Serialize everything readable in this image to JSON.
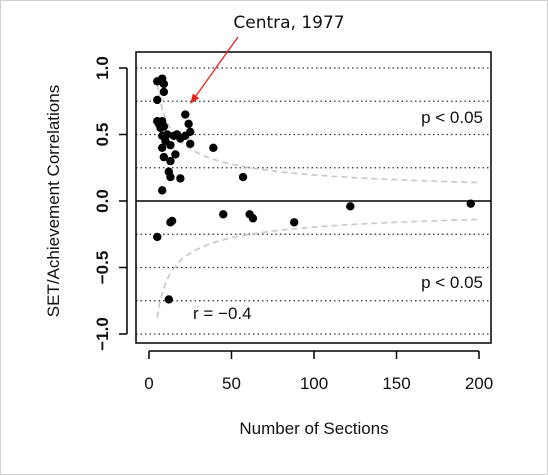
{
  "chart_data": {
    "type": "scatter",
    "title": "",
    "xlabel": "Number of Sections",
    "ylabel": "SET/Achievement Correlations",
    "xlim": [
      0,
      200
    ],
    "ylim": [
      -1.05,
      1.05
    ],
    "x_ticks": [
      0,
      50,
      100,
      150,
      200
    ],
    "y_ticks": [
      -1.0,
      -0.5,
      0.0,
      0.5,
      1.0
    ],
    "x_tick_labels": [
      "0",
      "50",
      "100",
      "150",
      "200"
    ],
    "y_tick_labels": [
      "−1.0",
      "−0.5",
      "0.0",
      "0.5",
      "1.0"
    ],
    "grid": "horizontal dotted lines at y = ±0.25, ±0.5, ±0.75, ±1.0",
    "reference_line_y": 0,
    "point_color": "#000000",
    "curve_color": "#c8c8c8",
    "points": [
      {
        "x": 5,
        "y": 0.9
      },
      {
        "x": 8,
        "y": 0.92
      },
      {
        "x": 9,
        "y": 0.88
      },
      {
        "x": 9,
        "y": 0.82
      },
      {
        "x": 5,
        "y": 0.76
      },
      {
        "x": 5,
        "y": 0.6
      },
      {
        "x": 6,
        "y": 0.58
      },
      {
        "x": 7,
        "y": 0.55
      },
      {
        "x": 8,
        "y": 0.6
      },
      {
        "x": 9,
        "y": 0.56
      },
      {
        "x": 11,
        "y": 0.5
      },
      {
        "x": 8,
        "y": 0.49
      },
      {
        "x": 10,
        "y": 0.45
      },
      {
        "x": 13,
        "y": 0.42
      },
      {
        "x": 15,
        "y": 0.49
      },
      {
        "x": 17,
        "y": 0.5
      },
      {
        "x": 19,
        "y": 0.47
      },
      {
        "x": 22,
        "y": 0.49
      },
      {
        "x": 22,
        "y": 0.65
      },
      {
        "x": 24,
        "y": 0.58
      },
      {
        "x": 25,
        "y": 0.52
      },
      {
        "x": 25,
        "y": 0.43
      },
      {
        "x": 8,
        "y": 0.4
      },
      {
        "x": 9,
        "y": 0.33
      },
      {
        "x": 13,
        "y": 0.3
      },
      {
        "x": 16,
        "y": 0.35
      },
      {
        "x": 12,
        "y": 0.22
      },
      {
        "x": 13,
        "y": 0.18
      },
      {
        "x": 19,
        "y": 0.17
      },
      {
        "x": 8,
        "y": 0.08
      },
      {
        "x": 39,
        "y": 0.4
      },
      {
        "x": 57,
        "y": 0.18
      },
      {
        "x": 13,
        "y": -0.16
      },
      {
        "x": 14,
        "y": -0.15
      },
      {
        "x": 5,
        "y": -0.27
      },
      {
        "x": 12,
        "y": -0.74
      },
      {
        "x": 45,
        "y": -0.1
      },
      {
        "x": 61,
        "y": -0.1
      },
      {
        "x": 63,
        "y": -0.13
      },
      {
        "x": 88,
        "y": -0.16
      },
      {
        "x": 122,
        "y": -0.04
      },
      {
        "x": 195,
        "y": -0.02
      }
    ],
    "curve": {
      "form": "1.96/sqrt(n)",
      "x_min": 5,
      "x_max": 200
    },
    "annotations": [
      {
        "text": "p < 0.05",
        "x": 200,
        "y": 0.63
      },
      {
        "text": "p < 0.05",
        "x": 200,
        "y": -0.63
      },
      {
        "text": "r =  −0.4",
        "x": 27,
        "y": -0.85
      }
    ],
    "callout": {
      "text": "Centra, 1977",
      "target_x": 25,
      "target_y": 0.73
    },
    "arrow_color": "#e8231a"
  }
}
